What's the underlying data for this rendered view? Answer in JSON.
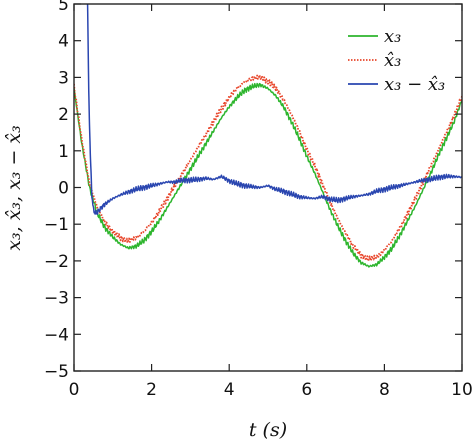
{
  "chart_data": {
    "type": "line",
    "title": "",
    "xlabel": "t (s)",
    "ylabel": "x₃, x̂₃, x₃ − x̂₃",
    "xlim": [
      0,
      10
    ],
    "ylim": [
      -5,
      5
    ],
    "xticks": [
      "0",
      "2",
      "4",
      "6",
      "8",
      "10"
    ],
    "yticks": [
      "5",
      "4",
      "3",
      "2",
      "1",
      "0",
      "−1",
      "−2",
      "−3",
      "−4",
      "−5"
    ],
    "grid": false,
    "legend_position": "top-right",
    "series": [
      {
        "name": "x₃",
        "color": "#2db52d",
        "style": "solid",
        "x": [
          0,
          0.2,
          0.4,
          0.6,
          0.8,
          1.0,
          1.2,
          1.4,
          1.6,
          1.8,
          2.0,
          2.2,
          2.4,
          2.6,
          2.8,
          3.0,
          3.2,
          3.4,
          3.6,
          3.8,
          4.0,
          4.2,
          4.4,
          4.6,
          4.8,
          5.0,
          5.2,
          5.4,
          5.6,
          5.8,
          6.0,
          6.2,
          6.4,
          6.6,
          6.8,
          7.0,
          7.2,
          7.4,
          7.6,
          7.8,
          8.0,
          8.2,
          8.4,
          8.6,
          8.8,
          9.0,
          9.2,
          9.4,
          9.6,
          9.8,
          10.0
        ],
        "y": [
          2.7,
          1.2,
          0.0,
          -0.7,
          -1.1,
          -1.35,
          -1.55,
          -1.65,
          -1.6,
          -1.45,
          -1.2,
          -0.9,
          -0.55,
          -0.2,
          0.15,
          0.5,
          0.85,
          1.2,
          1.55,
          1.9,
          2.2,
          2.45,
          2.65,
          2.75,
          2.8,
          2.7,
          2.5,
          2.2,
          1.8,
          1.35,
          0.85,
          0.4,
          -0.1,
          -0.6,
          -1.05,
          -1.45,
          -1.8,
          -2.05,
          -2.15,
          -2.1,
          -1.9,
          -1.65,
          -1.3,
          -0.9,
          -0.5,
          -0.05,
          0.4,
          0.9,
          1.35,
          1.8,
          2.4
        ]
      },
      {
        "name": "x̂₃",
        "color": "#e8452a",
        "style": "dotted",
        "x": [
          0,
          0.2,
          0.4,
          0.6,
          0.8,
          1.0,
          1.2,
          1.4,
          1.6,
          1.8,
          2.0,
          2.2,
          2.4,
          2.6,
          2.8,
          3.0,
          3.2,
          3.4,
          3.6,
          3.8,
          4.0,
          4.2,
          4.4,
          4.6,
          4.8,
          5.0,
          5.2,
          5.4,
          5.6,
          5.8,
          6.0,
          6.2,
          6.4,
          6.6,
          6.8,
          7.0,
          7.2,
          7.4,
          7.6,
          7.8,
          8.0,
          8.2,
          8.4,
          8.6,
          8.8,
          9.0,
          9.2,
          9.4,
          9.6,
          9.8,
          10.0
        ],
        "y": [
          2.75,
          1.3,
          0.1,
          -0.55,
          -0.95,
          -1.2,
          -1.38,
          -1.45,
          -1.38,
          -1.2,
          -0.95,
          -0.65,
          -0.3,
          0.05,
          0.4,
          0.75,
          1.1,
          1.45,
          1.8,
          2.15,
          2.45,
          2.7,
          2.88,
          2.98,
          3.0,
          2.9,
          2.7,
          2.4,
          2.0,
          1.55,
          1.05,
          0.6,
          0.1,
          -0.4,
          -0.85,
          -1.25,
          -1.6,
          -1.85,
          -1.95,
          -1.9,
          -1.7,
          -1.45,
          -1.1,
          -0.7,
          -0.3,
          0.15,
          0.6,
          1.05,
          1.5,
          1.95,
          2.5
        ]
      },
      {
        "name": "x₃ − x̂₃",
        "color": "#2a46b0",
        "style": "solid",
        "x": [
          0.35,
          0.38,
          0.42,
          0.46,
          0.5,
          0.55,
          0.6,
          0.7,
          0.8,
          1.0,
          1.2,
          1.4,
          1.6,
          1.8,
          2.0,
          2.2,
          2.4,
          2.6,
          2.8,
          3.0,
          3.2,
          3.4,
          3.6,
          3.8,
          4.0,
          4.2,
          4.4,
          4.6,
          4.8,
          5.0,
          5.2,
          5.4,
          5.6,
          5.8,
          6.0,
          6.2,
          6.4,
          6.6,
          6.8,
          7.0,
          7.2,
          7.4,
          7.6,
          7.8,
          8.0,
          8.2,
          8.4,
          8.6,
          8.8,
          9.0,
          9.2,
          9.4,
          9.6,
          9.8,
          10.0
        ],
        "y": [
          5.0,
          2.6,
          0.9,
          -0.2,
          -0.6,
          -0.7,
          -0.68,
          -0.55,
          -0.45,
          -0.3,
          -0.2,
          -0.12,
          -0.05,
          0.0,
          0.05,
          0.1,
          0.15,
          0.15,
          0.2,
          0.2,
          0.22,
          0.25,
          0.22,
          0.3,
          0.18,
          0.1,
          0.05,
          0.02,
          0.0,
          0.05,
          -0.05,
          -0.1,
          -0.18,
          -0.25,
          -0.28,
          -0.3,
          -0.25,
          -0.32,
          -0.35,
          -0.3,
          -0.25,
          -0.22,
          -0.18,
          -0.1,
          -0.05,
          0.0,
          0.05,
          0.1,
          0.15,
          0.2,
          0.22,
          0.28,
          0.3,
          0.3,
          0.28
        ]
      }
    ]
  }
}
